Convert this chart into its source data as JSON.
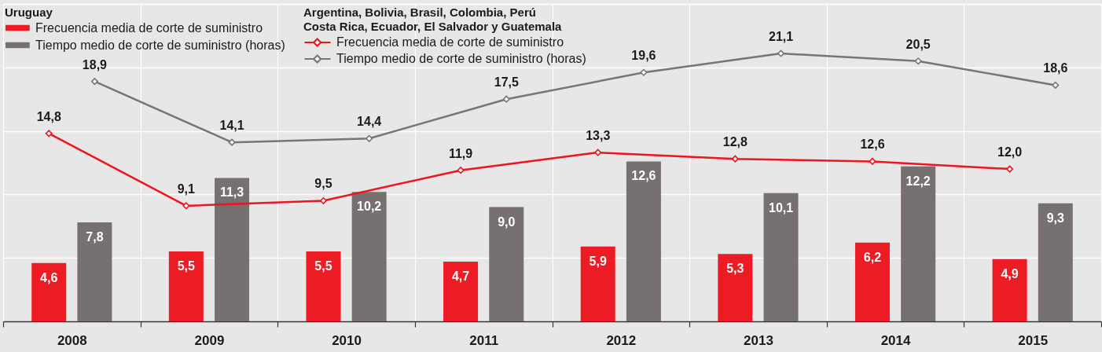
{
  "chart_data": {
    "type": "bar",
    "categories": [
      "2008",
      "2009",
      "2010",
      "2011",
      "2012",
      "2013",
      "2014",
      "2015"
    ],
    "series": [
      {
        "name": "Frecuencia media de corte de suministro",
        "color": "#ed1c24",
        "values": [
          4.6,
          5.5,
          5.5,
          4.7,
          5.9,
          5.3,
          6.2,
          4.9
        ],
        "value_labels": [
          "4,6",
          "5,5",
          "5,5",
          "4,7",
          "5,9",
          "5,3",
          "6,2",
          "4,9"
        ]
      },
      {
        "name": "Tiempo medio de corte de suministro (horas)",
        "color": "#767170",
        "values": [
          7.8,
          11.3,
          10.2,
          9.0,
          12.6,
          10.1,
          12.2,
          9.3
        ],
        "value_labels": [
          "7,8",
          "11,3",
          "10,2",
          "9,0",
          "12,6",
          "10,1",
          "12,2",
          "9,3"
        ]
      },
      {
        "name": "Frecuencia media de corte de suministro",
        "type": "line",
        "color": "#f0141e",
        "values": [
          14.8,
          9.1,
          9.5,
          11.9,
          13.3,
          12.8,
          12.6,
          12.0
        ],
        "value_labels": [
          "14,8",
          "9,1",
          "9,5",
          "11,9",
          "13,3",
          "12,8",
          "12,6",
          "12,0"
        ]
      },
      {
        "name": "Tiempo medio de corte de suministro (horas)",
        "type": "line",
        "color": "#7a7574",
        "values": [
          18.9,
          14.1,
          14.4,
          17.5,
          19.6,
          21.1,
          20.5,
          18.6
        ],
        "value_labels": [
          "18,9",
          "14,1",
          "14,4",
          "17,5",
          "19,6",
          "21,1",
          "20,5",
          "18,6"
        ]
      }
    ],
    "legend_title": "Uruguay",
    "annotations": [
      "Argentina, Bolivia, Brasil, Colombia, Perú",
      "Costa Rica, Ecuador, El Salvador y Guatemala"
    ],
    "tick_labels": "x",
    "grid": true,
    "legend": "top left",
    "marker": "diamond",
    "line_style": "solid"
  }
}
